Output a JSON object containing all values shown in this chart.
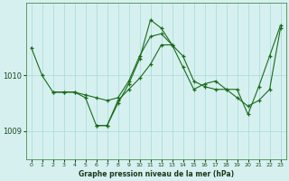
{
  "title": "Graphe pression niveau de la mer (hPa)",
  "background_color": "#d6f0f0",
  "grid_color": "#a8d8d8",
  "line_color": "#1a6b1a",
  "x_ticks": [
    0,
    1,
    2,
    3,
    4,
    5,
    6,
    7,
    8,
    9,
    10,
    11,
    12,
    13,
    14,
    15,
    16,
    17,
    18,
    19,
    20,
    21,
    22,
    23
  ],
  "ylim": [
    1008.5,
    1011.3
  ],
  "y_ticks": [
    1009,
    1010
  ],
  "series1": [
    1010.5,
    1010.0,
    1009.7,
    1009.7,
    1009.7,
    1009.65,
    1009.6,
    1009.55,
    1009.6,
    1009.9,
    1010.35,
    1010.7,
    1010.75,
    1010.55,
    1010.35,
    1009.9,
    1009.8,
    1009.75,
    1009.75,
    1009.6,
    1009.45,
    1009.55,
    1009.75,
    1010.85
  ],
  "series2": [
    null,
    null,
    1009.7,
    1009.7,
    1009.7,
    1009.6,
    1009.1,
    1009.1,
    1009.5,
    1009.85,
    1010.3,
    1011.0,
    1010.85,
    1010.55,
    null,
    null,
    null,
    null,
    null,
    null,
    null,
    null,
    null,
    null
  ],
  "series3": [
    null,
    null,
    null,
    null,
    null,
    null,
    1009.1,
    1009.1,
    1009.55,
    1009.75,
    1009.95,
    1010.2,
    1010.55,
    1010.55,
    1010.15,
    1009.75,
    1009.85,
    1009.9,
    1009.75,
    1009.75,
    1009.3,
    1009.8,
    1010.35,
    1010.9
  ]
}
